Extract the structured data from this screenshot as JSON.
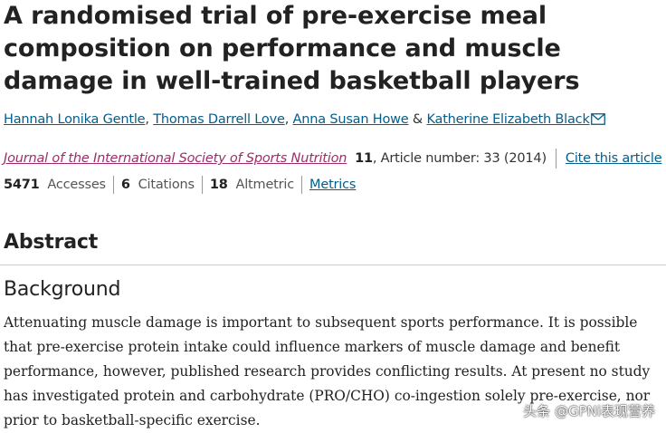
{
  "title": "A randomised trial of pre-exercise meal composition on performance and muscle damage in well-trained basketball players",
  "authors": [
    "Hannah Lonika Gentle",
    "Thomas Darrell Love",
    "Anna Susan Howe",
    "Katherine Elizabeth Black"
  ],
  "author_separators": [
    ", ",
    ", ",
    " & "
  ],
  "meta": {
    "journal": "Journal of the International Society of Sports Nutrition",
    "volume": "11",
    "article_text": ", Article number: 33 (2014)",
    "cite_label": "Cite this article"
  },
  "stats": {
    "accesses_count": "5471",
    "accesses_label": "Accesses",
    "citations_count": "6",
    "citations_label": "Citations",
    "altmetric_count": "18",
    "altmetric_label": "Altmetric",
    "metrics_label": "Metrics"
  },
  "abstract_heading": "Abstract",
  "background_heading": "Background",
  "background_lines": [
    "Attenuating muscle damage is important to subsequent sports performance. It is possible",
    "that pre-exercise protein intake could influence markers of muscle damage and benefit",
    "performance, however, published research provides conflicting results. At present no study",
    "has investigated protein and carbohydrate (PRO/CHO) co-ingestion solely pre-exercise, nor",
    "prior to basketball-specific exercise."
  ],
  "watermark": "头条 @GPNi表现营养",
  "colors": {
    "link": "#025e8d",
    "journal": "#9f2c6a"
  }
}
